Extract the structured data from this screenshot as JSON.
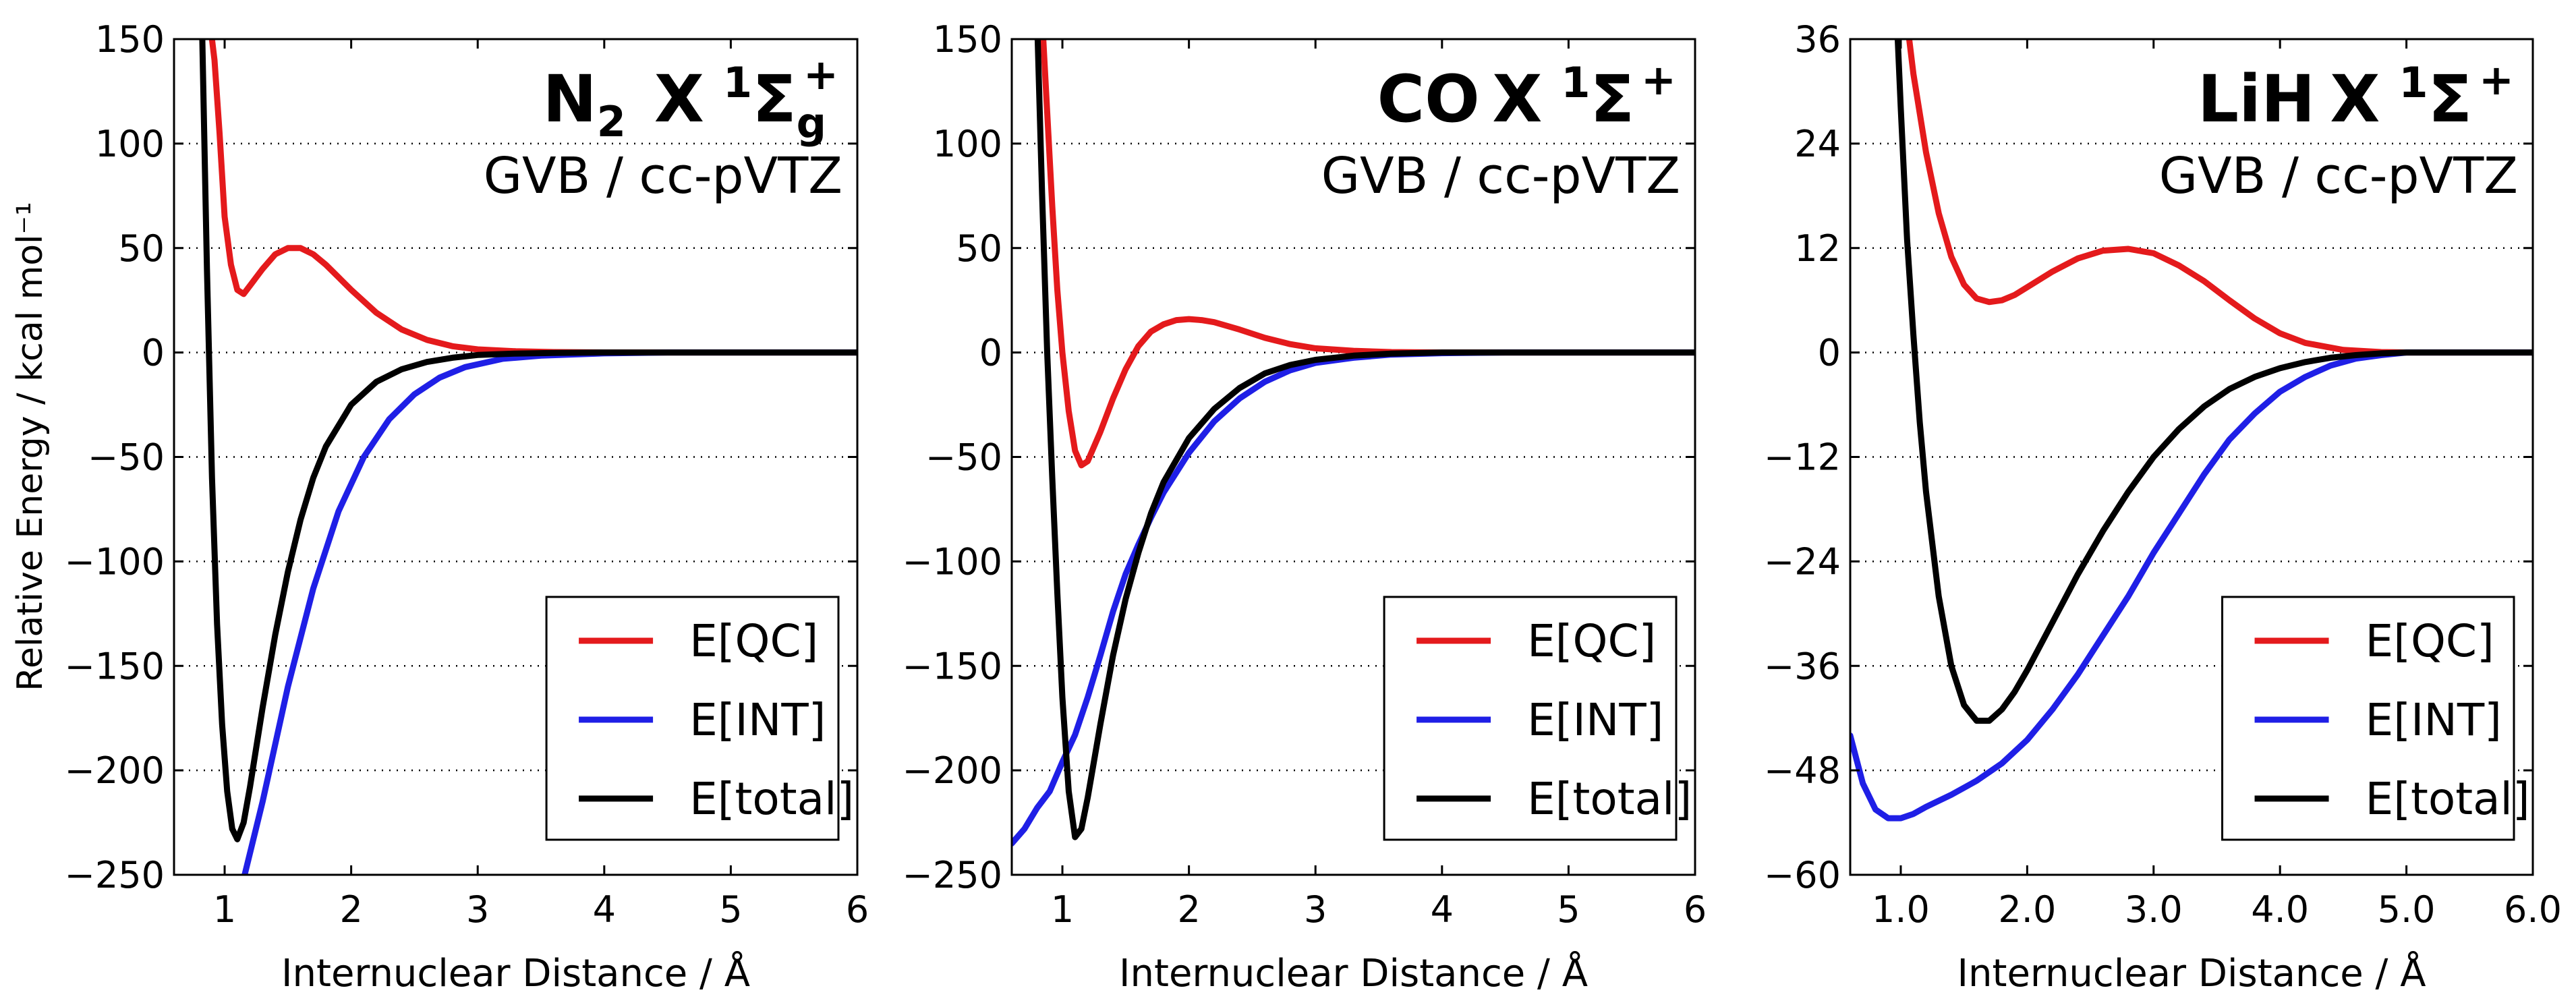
{
  "figure": {
    "ylabel": "Relative Energy / kcal mol⁻¹"
  },
  "chart_data": [
    {
      "type": "line",
      "title_species": "N",
      "title_species_sub": "2",
      "title_state": "X",
      "title_mult": "1",
      "title_term": "Σ",
      "title_sub": "g",
      "title_sup": "+",
      "method": "GVB / cc-pVTZ",
      "xlabel": "Internuclear Distance / Å",
      "xlim": [
        0.6,
        6.0
      ],
      "ylim": [
        -250,
        150
      ],
      "xticks": [
        1,
        2,
        3,
        4,
        5,
        6
      ],
      "xtick_labels": [
        "1",
        "2",
        "3",
        "4",
        "5",
        "6"
      ],
      "yticks": [
        -250,
        -200,
        -150,
        -100,
        -50,
        0,
        50,
        100,
        150
      ],
      "ytick_labels": [
        "−250",
        "−200",
        "−150",
        "−100",
        "−50",
        "0",
        "50",
        "100",
        "150"
      ],
      "grid": "horizontal dotted",
      "legend": "lower-right",
      "series": [
        {
          "name": "E[QC]",
          "color": "#e41a1c",
          "x": [
            0.88,
            0.92,
            0.96,
            1.0,
            1.05,
            1.1,
            1.15,
            1.2,
            1.3,
            1.4,
            1.5,
            1.6,
            1.7,
            1.8,
            1.9,
            2.0,
            2.2,
            2.4,
            2.6,
            2.8,
            3.0,
            3.3,
            3.6,
            4.0,
            4.5,
            5.0,
            6.0
          ],
          "y": [
            160,
            140,
            105,
            65,
            42,
            30,
            28,
            32,
            40,
            47,
            50,
            50,
            47,
            42,
            36,
            30,
            19,
            11,
            6,
            3,
            1.5,
            0.6,
            0.2,
            0,
            0,
            0,
            0
          ]
        },
        {
          "name": "E[INT]",
          "color": "#1f1fe6",
          "x": [
            1.15,
            1.3,
            1.5,
            1.7,
            1.9,
            2.1,
            2.3,
            2.5,
            2.7,
            2.9,
            3.2,
            3.5,
            4.0,
            4.5,
            5.0,
            6.0
          ],
          "y": [
            -252,
            -215,
            -160,
            -113,
            -76,
            -50,
            -32,
            -20,
            -12,
            -7,
            -3,
            -1.5,
            -0.4,
            0,
            0,
            0
          ]
        },
        {
          "name": "E[total]",
          "color": "#000000",
          "x": [
            0.82,
            0.86,
            0.9,
            0.94,
            0.98,
            1.02,
            1.06,
            1.1,
            1.15,
            1.2,
            1.3,
            1.4,
            1.5,
            1.6,
            1.7,
            1.8,
            2.0,
            2.2,
            2.4,
            2.6,
            2.8,
            3.0,
            3.3,
            3.6,
            4.0,
            4.5,
            5.0,
            6.0
          ],
          "y": [
            160,
            40,
            -60,
            -130,
            -178,
            -210,
            -228,
            -233,
            -225,
            -208,
            -170,
            -135,
            -105,
            -80,
            -60,
            -45,
            -25,
            -14,
            -8,
            -4.5,
            -2.5,
            -1.2,
            -0.5,
            -0.2,
            0,
            0,
            0,
            0
          ]
        }
      ]
    },
    {
      "type": "line",
      "title_species": "CO",
      "title_species_sub": "",
      "title_state": "X",
      "title_mult": "1",
      "title_term": "Σ",
      "title_sub": "",
      "title_sup": "+",
      "method": "GVB / cc-pVTZ",
      "xlabel": "Internuclear Distance / Å",
      "xlim": [
        0.6,
        6.0
      ],
      "ylim": [
        -250,
        150
      ],
      "xticks": [
        1,
        2,
        3,
        4,
        5,
        6
      ],
      "xtick_labels": [
        "1",
        "2",
        "3",
        "4",
        "5",
        "6"
      ],
      "yticks": [
        -250,
        -200,
        -150,
        -100,
        -50,
        0,
        50,
        100,
        150
      ],
      "ytick_labels": [
        "−250",
        "−200",
        "−150",
        "−100",
        "−50",
        "0",
        "50",
        "100",
        "150"
      ],
      "grid": "horizontal dotted",
      "legend": "lower-right",
      "series": [
        {
          "name": "E[QC]",
          "color": "#e41a1c",
          "x": [
            0.84,
            0.88,
            0.92,
            0.96,
            1.0,
            1.05,
            1.1,
            1.15,
            1.2,
            1.3,
            1.4,
            1.5,
            1.6,
            1.7,
            1.8,
            1.9,
            2.0,
            2.1,
            2.2,
            2.4,
            2.6,
            2.8,
            3.0,
            3.3,
            3.6,
            4.0,
            5.0,
            6.0
          ],
          "y": [
            160,
            115,
            70,
            30,
            0,
            -28,
            -47,
            -54,
            -52,
            -38,
            -22,
            -8,
            3,
            10,
            13.5,
            15.5,
            16,
            15.5,
            14.5,
            11,
            7,
            4,
            2,
            0.8,
            0.2,
            0,
            0,
            0
          ]
        },
        {
          "name": "E[INT]",
          "color": "#1f1fe6",
          "x": [
            0.6,
            0.7,
            0.8,
            0.9,
            1.0,
            1.1,
            1.2,
            1.3,
            1.4,
            1.5,
            1.6,
            1.7,
            1.8,
            2.0,
            2.2,
            2.4,
            2.6,
            2.8,
            3.0,
            3.3,
            3.6,
            4.0,
            4.5,
            5.0,
            6.0
          ],
          "y": [
            -235,
            -228,
            -218,
            -210,
            -196,
            -183,
            -165,
            -145,
            -124,
            -106,
            -92,
            -79,
            -67,
            -48,
            -33,
            -22,
            -14,
            -8.5,
            -5,
            -2.5,
            -1,
            -0.3,
            0,
            0,
            0
          ]
        },
        {
          "name": "E[total]",
          "color": "#000000",
          "x": [
            0.8,
            0.84,
            0.88,
            0.92,
            0.96,
            1.0,
            1.05,
            1.1,
            1.15,
            1.2,
            1.3,
            1.4,
            1.5,
            1.6,
            1.7,
            1.8,
            2.0,
            2.2,
            2.4,
            2.6,
            2.8,
            3.0,
            3.3,
            3.6,
            4.0,
            5.0,
            6.0
          ],
          "y": [
            160,
            75,
            0,
            -60,
            -115,
            -165,
            -210,
            -232,
            -228,
            -213,
            -178,
            -145,
            -118,
            -96,
            -77,
            -62,
            -41,
            -27,
            -17,
            -10,
            -6,
            -3.5,
            -1.5,
            -0.5,
            0,
            0,
            0
          ]
        }
      ]
    },
    {
      "type": "line",
      "title_species": "LiH",
      "title_species_sub": "",
      "title_state": "X",
      "title_mult": "1",
      "title_term": "Σ",
      "title_sub": "",
      "title_sup": "+",
      "method": "GVB / cc-pVTZ",
      "xlabel": "Internuclear Distance / Å",
      "xlim": [
        0.6,
        6.0
      ],
      "ylim": [
        -60,
        36
      ],
      "xticks": [
        1.0,
        2.0,
        3.0,
        4.0,
        5.0,
        6.0
      ],
      "xtick_labels": [
        "1.0",
        "2.0",
        "3.0",
        "4.0",
        "5.0",
        "6.0"
      ],
      "yticks": [
        -60,
        -48,
        -36,
        -24,
        -12,
        0,
        12,
        24,
        36
      ],
      "ytick_labels": [
        "−60",
        "−48",
        "−36",
        "−24",
        "−12",
        "0",
        "12",
        "24",
        "36"
      ],
      "grid": "horizontal dotted",
      "legend": "lower-right",
      "series": [
        {
          "name": "E[QC]",
          "color": "#e41a1c",
          "x": [
            1.05,
            1.1,
            1.2,
            1.3,
            1.4,
            1.5,
            1.6,
            1.7,
            1.8,
            1.9,
            2.0,
            2.2,
            2.4,
            2.6,
            2.8,
            3.0,
            3.2,
            3.4,
            3.6,
            3.8,
            4.0,
            4.2,
            4.5,
            4.8,
            5.0,
            6.0
          ],
          "y": [
            38,
            32,
            23,
            16,
            11,
            7.8,
            6.2,
            5.8,
            6.0,
            6.6,
            7.5,
            9.3,
            10.8,
            11.7,
            11.9,
            11.4,
            10.0,
            8.2,
            6.0,
            3.9,
            2.2,
            1.1,
            0.3,
            0.05,
            0,
            0
          ]
        },
        {
          "name": "E[INT]",
          "color": "#1f1fe6",
          "x": [
            0.6,
            0.7,
            0.8,
            0.9,
            1.0,
            1.1,
            1.2,
            1.4,
            1.6,
            1.8,
            2.0,
            2.2,
            2.4,
            2.6,
            2.8,
            3.0,
            3.2,
            3.4,
            3.6,
            3.8,
            4.0,
            4.2,
            4.4,
            4.6,
            4.8,
            5.0,
            6.0
          ],
          "y": [
            -44,
            -49.5,
            -52.5,
            -53.5,
            -53.5,
            -53.0,
            -52.2,
            -50.8,
            -49.2,
            -47.2,
            -44.5,
            -41,
            -37,
            -32.5,
            -28,
            -23,
            -18.5,
            -14,
            -10,
            -7,
            -4.5,
            -2.8,
            -1.5,
            -0.7,
            -0.3,
            0,
            0
          ]
        },
        {
          "name": "E[total]",
          "color": "#000000",
          "x": [
            0.97,
            1.0,
            1.05,
            1.1,
            1.15,
            1.2,
            1.3,
            1.4,
            1.5,
            1.6,
            1.7,
            1.8,
            1.9,
            2.0,
            2.2,
            2.4,
            2.6,
            2.8,
            3.0,
            3.2,
            3.4,
            3.6,
            3.8,
            4.0,
            4.2,
            4.4,
            4.6,
            4.8,
            5.0,
            6.0
          ],
          "y": [
            38,
            28,
            13,
            2,
            -8,
            -16,
            -28,
            -36,
            -40.5,
            -42.3,
            -42.3,
            -41,
            -39,
            -36.5,
            -31,
            -25.5,
            -20.5,
            -16,
            -12,
            -8.8,
            -6.2,
            -4.2,
            -2.8,
            -1.8,
            -1.1,
            -0.6,
            -0.3,
            -0.1,
            0,
            0
          ]
        }
      ]
    }
  ]
}
